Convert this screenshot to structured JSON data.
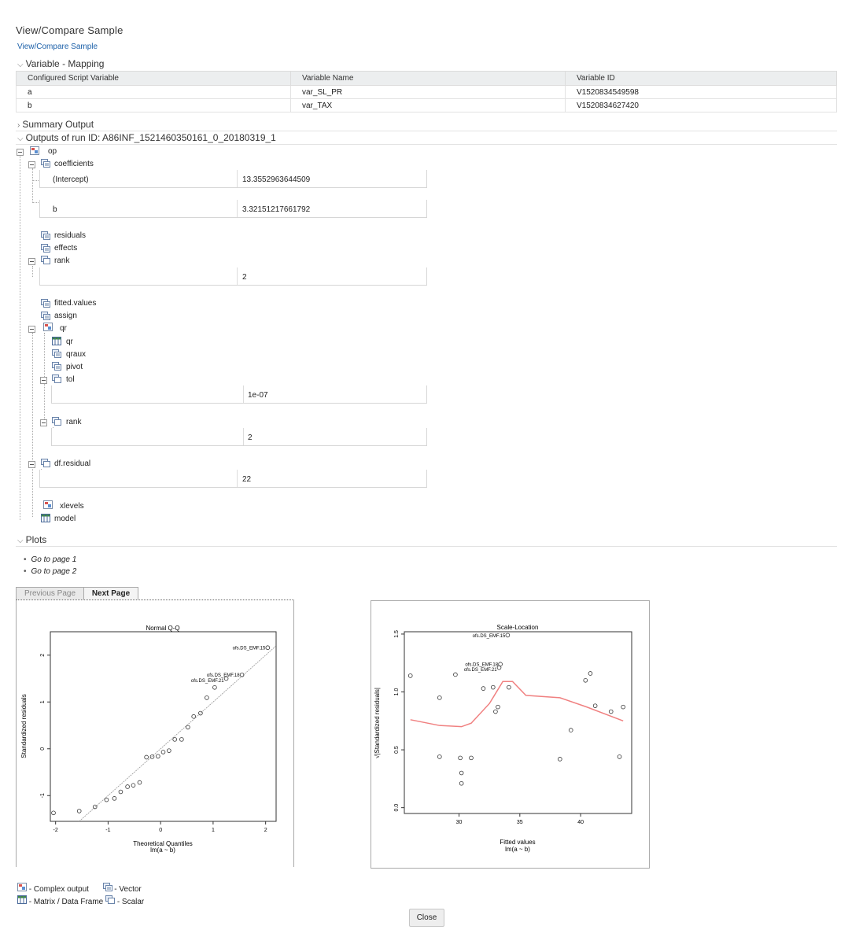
{
  "page_title": "View/Compare Sample",
  "breadcrumb": "View/Compare Sample",
  "sections": {
    "variable_mapping": "Variable - Mapping",
    "summary_output": "Summary Output",
    "outputs": "Outputs of run ID: A86INF_1521460350161_0_20180319_1",
    "plots": "Plots"
  },
  "mapping_table": {
    "headers": [
      "Configured Script Variable",
      "Variable Name",
      "Variable ID"
    ],
    "rows": [
      [
        "a",
        "var_SL_PR",
        "V1520834549598"
      ],
      [
        "b",
        "var_TAX",
        "V1520834627420"
      ]
    ]
  },
  "tree": {
    "op": "op",
    "coefficients": "coefficients",
    "intercept_label": "(Intercept)",
    "intercept_value": "13.3552963644509",
    "b_label": "b",
    "b_value": "3.32151217661792",
    "residuals": "residuals",
    "effects": "effects",
    "rank": "rank",
    "rank_value": "2",
    "fitted_values": "fitted.values",
    "assign": "assign",
    "qr": "qr",
    "qr_qr": "qr",
    "qraux": "qraux",
    "pivot": "pivot",
    "tol": "tol",
    "tol_value": "1e-07",
    "qr_rank": "rank",
    "qr_rank_value": "2",
    "df_residual": "df.residual",
    "df_residual_value": "22",
    "xlevels": "xlevels",
    "model": "model"
  },
  "plot_links": [
    "Go to page 1",
    "Go to page 2"
  ],
  "buttons": {
    "previous": "Previous Page",
    "next": "Next Page",
    "close": "Close"
  },
  "legend": {
    "complex": "- Complex output",
    "vector": "- Vector",
    "matrix": "- Matrix / Data Frame",
    "scalar": "- Scalar"
  },
  "colors": {
    "link": "#1a5fa8",
    "loess": "#f08080"
  },
  "chart_data": [
    {
      "type": "scatter",
      "title": "Normal Q-Q",
      "xlabel": "Theoretical Quantiles",
      "xsub": "lm(a ~ b)",
      "ylabel": "Standardized residuals",
      "xlim": [
        -2.1,
        2.2
      ],
      "ylim": [
        -1.55,
        2.5
      ],
      "xticks": [
        "-2",
        "-1",
        "0",
        "1",
        "2"
      ],
      "yticks": [
        "-1",
        "0",
        "1",
        "2"
      ],
      "reference_line": {
        "slope": 1,
        "intercept": 0
      },
      "points": [
        [
          -2.04,
          -1.37
        ],
        [
          -1.55,
          -1.33
        ],
        [
          -1.25,
          -1.24
        ],
        [
          -1.03,
          -1.09
        ],
        [
          -0.88,
          -1.06
        ],
        [
          -0.76,
          -0.92
        ],
        [
          -0.63,
          -0.81
        ],
        [
          -0.52,
          -0.78
        ],
        [
          -0.4,
          -0.72
        ],
        [
          -0.27,
          -0.18
        ],
        [
          -0.16,
          -0.17
        ],
        [
          -0.05,
          -0.16
        ],
        [
          0.05,
          -0.07
        ],
        [
          0.16,
          -0.04
        ],
        [
          0.27,
          0.2
        ],
        [
          0.4,
          0.2
        ],
        [
          0.52,
          0.46
        ],
        [
          0.63,
          0.69
        ],
        [
          0.76,
          0.76
        ],
        [
          0.88,
          1.09
        ],
        [
          1.03,
          1.31
        ],
        [
          1.25,
          1.5
        ],
        [
          1.55,
          1.58
        ],
        [
          2.04,
          2.16
        ]
      ],
      "annotations": [
        {
          "text": "ofs.DS_EMF.15",
          "x": 2.04,
          "y": 2.16
        },
        {
          "text": "ofs.DS_EMF.18",
          "x": 1.55,
          "y": 1.58
        },
        {
          "text": "ofs.DS_EMF.21",
          "x": 1.25,
          "y": 1.5
        }
      ]
    },
    {
      "type": "scatter",
      "title": "Scale-Location",
      "xlabel": "Fitted values",
      "xsub": "lm(a ~ b)",
      "ylabel": "√|Standardized residuals|",
      "xlim": [
        25.5,
        44.2
      ],
      "ylim": [
        -0.05,
        1.52
      ],
      "xticks": [
        "30",
        "35",
        "40"
      ],
      "yticks": [
        "0.0",
        "0.5",
        "1.0",
        "1.5"
      ],
      "points": [
        [
          26.0,
          1.14
        ],
        [
          28.4,
          0.95
        ],
        [
          28.4,
          0.44
        ],
        [
          29.7,
          1.15
        ],
        [
          30.1,
          0.43
        ],
        [
          30.2,
          0.3
        ],
        [
          30.2,
          0.21
        ],
        [
          31.0,
          0.43
        ],
        [
          32.0,
          1.03
        ],
        [
          32.8,
          1.04
        ],
        [
          33.0,
          0.83
        ],
        [
          33.2,
          0.87
        ],
        [
          33.3,
          1.21
        ],
        [
          34.1,
          1.04
        ],
        [
          38.3,
          0.42
        ],
        [
          39.2,
          0.67
        ],
        [
          40.4,
          1.1
        ],
        [
          40.8,
          1.16
        ],
        [
          41.2,
          0.88
        ],
        [
          42.5,
          0.83
        ],
        [
          43.2,
          0.44
        ],
        [
          43.5,
          0.87
        ],
        [
          33.4,
          1.24
        ],
        [
          34.0,
          1.49
        ]
      ],
      "smooth_line": [
        [
          26.0,
          0.76
        ],
        [
          28.4,
          0.71
        ],
        [
          30.2,
          0.7
        ],
        [
          31.0,
          0.73
        ],
        [
          32.5,
          0.9
        ],
        [
          33.6,
          1.09
        ],
        [
          34.4,
          1.09
        ],
        [
          35.5,
          0.97
        ],
        [
          38.3,
          0.95
        ],
        [
          40.5,
          0.87
        ],
        [
          43.5,
          0.75
        ]
      ],
      "annotations": [
        {
          "text": "ofs.DS_EMF.15",
          "x": 34.0,
          "y": 1.49
        },
        {
          "text": "ofs.DS_EMF.18",
          "x": 33.4,
          "y": 1.24
        },
        {
          "text": "ofs.DS_EMF.21",
          "x": 33.3,
          "y": 1.21
        }
      ]
    }
  ]
}
